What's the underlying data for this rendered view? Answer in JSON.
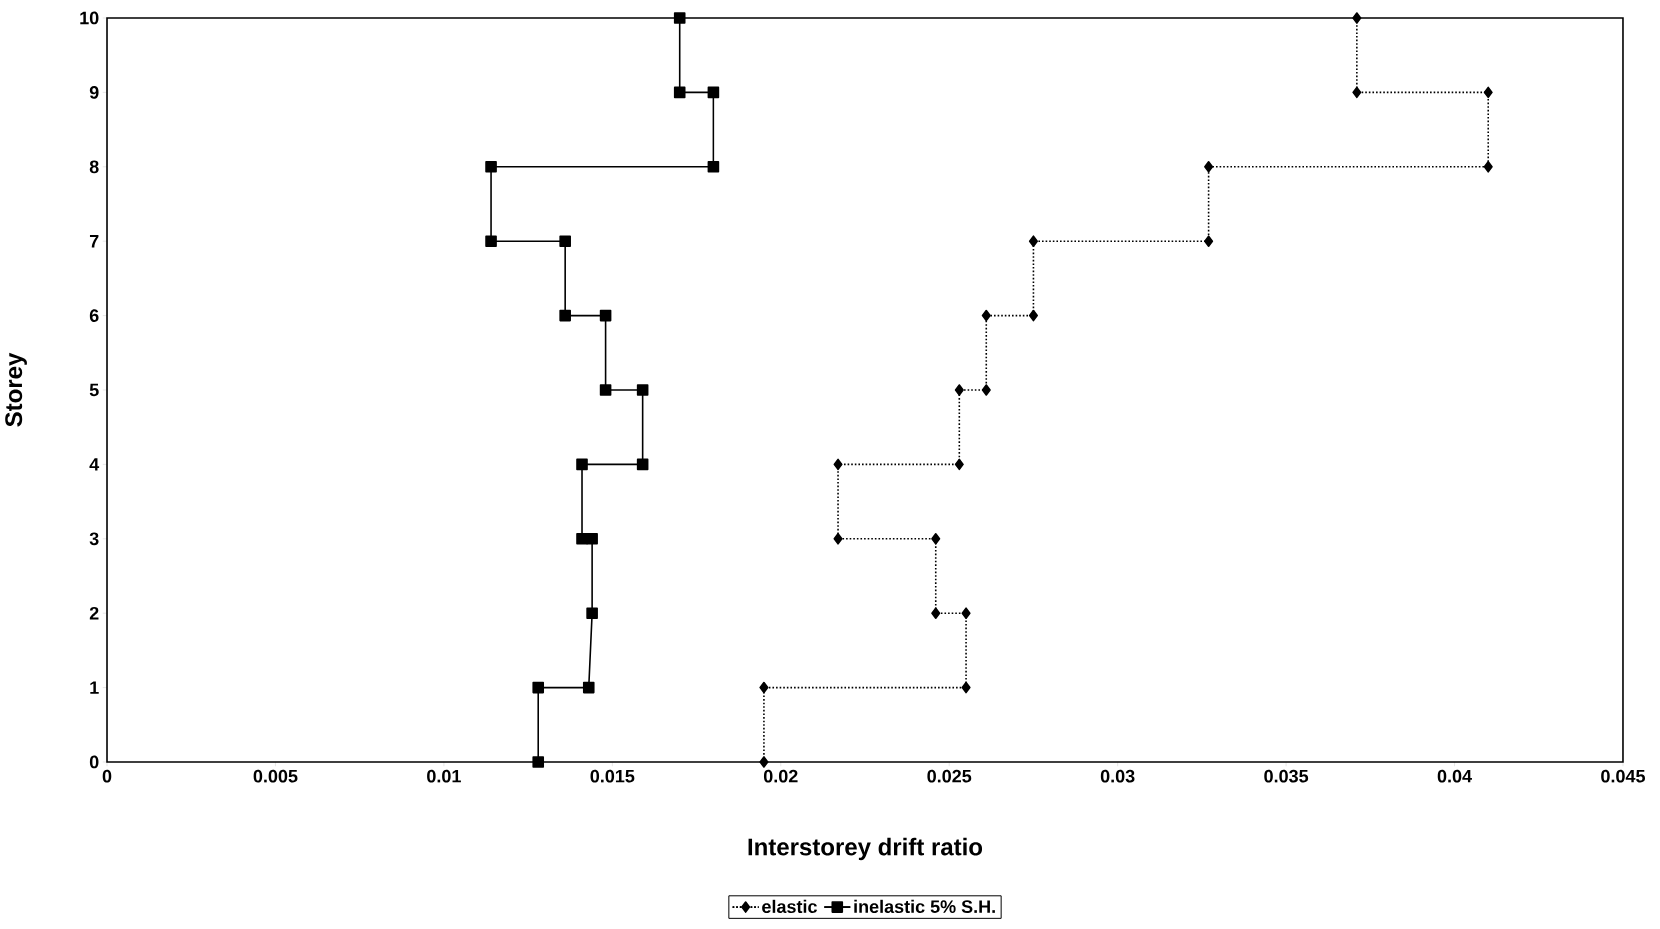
{
  "chart_data": {
    "type": "line",
    "xlabel": "Interstorey drift ratio",
    "ylabel": "Storey",
    "xlim": [
      0,
      0.045
    ],
    "ylim": [
      0,
      10
    ],
    "xticks": [
      0,
      0.005,
      0.01,
      0.015,
      0.02,
      0.025,
      0.03,
      0.035,
      0.04,
      0.045
    ],
    "yticks": [
      0,
      1,
      2,
      3,
      4,
      5,
      6,
      7,
      8,
      9,
      10
    ],
    "grid": false,
    "legend": "bottom",
    "series": [
      {
        "name": "elastic",
        "color": "#000000",
        "marker": "diamond",
        "line_style": "dotted",
        "x": [
          0.0371,
          0.0371,
          0.041,
          0.041,
          0.0327,
          0.0327,
          0.0275,
          0.0275,
          0.0261,
          0.0261,
          0.0253,
          0.0253,
          0.0217,
          0.0217,
          0.0246,
          0.0246,
          0.0255,
          0.0255,
          0.0195,
          0.0195
        ],
        "values": [
          10,
          9,
          9,
          8,
          8,
          7,
          7,
          6,
          6,
          5,
          5,
          4,
          4,
          3,
          3,
          2,
          2,
          1,
          1,
          0
        ]
      },
      {
        "name": "inelastic 5% S.H.",
        "color": "#000000",
        "marker": "square",
        "line_style": "solid",
        "x": [
          0.017,
          0.017,
          0.018,
          0.018,
          0.0114,
          0.0114,
          0.0136,
          0.0136,
          0.0148,
          0.0148,
          0.0159,
          0.0159,
          0.0141,
          0.0141,
          0.0144,
          0.0144,
          0.0143,
          0.0128,
          0.0128
        ],
        "values": [
          10,
          9,
          9,
          8,
          8,
          7,
          7,
          6,
          6,
          5,
          5,
          4,
          4,
          3,
          3,
          2,
          1,
          1,
          0
        ]
      }
    ]
  }
}
